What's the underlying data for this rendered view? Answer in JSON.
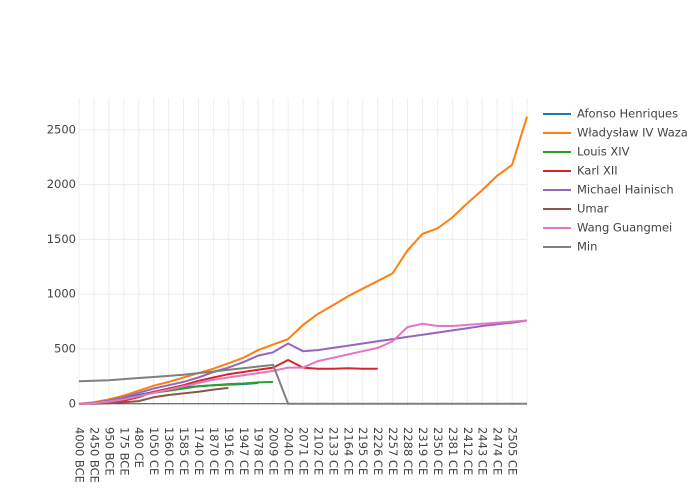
{
  "chart_data": {
    "type": "line",
    "categories": [
      "4000 BCE",
      "2450 BCE",
      "950 BCE",
      "175 BCE",
      "480 CE",
      "1050 CE",
      "1360 CE",
      "1585 CE",
      "1740 CE",
      "1870 CE",
      "1916 CE",
      "1947 CE",
      "1978 CE",
      "2009 CE",
      "2040 CE",
      "2071 CE",
      "2102 CE",
      "2133 CE",
      "2164 CE",
      "2195 CE",
      "2226 CE",
      "2257 CE",
      "2288 CE",
      "2319 CE",
      "2350 CE",
      "2381 CE",
      "2412 CE",
      "2443 CE",
      "2474 CE",
      "2505 CE",
      null
    ],
    "series": [
      {
        "name": "Afonso Henriques",
        "color": "#1f77b4",
        "values": [
          0,
          10,
          25,
          50,
          80,
          110,
          130,
          150,
          160,
          170,
          175,
          180,
          190,
          null,
          null,
          null,
          null,
          null,
          null,
          null,
          null,
          null,
          null,
          null,
          null,
          null,
          null,
          null,
          null,
          null,
          null
        ]
      },
      {
        "name": "Władysław IV Waza",
        "color": "#ff7f0e",
        "values": [
          0,
          15,
          40,
          75,
          120,
          165,
          200,
          240,
          280,
          320,
          370,
          420,
          490,
          540,
          590,
          720,
          820,
          900,
          980,
          1050,
          1120,
          1190,
          1400,
          1550,
          1600,
          1700,
          1830,
          1950,
          2080,
          2180,
          2620
        ]
      },
      {
        "name": "Louis XIV",
        "color": "#2ca02c",
        "values": [
          0,
          5,
          20,
          40,
          70,
          100,
          120,
          140,
          160,
          170,
          180,
          185,
          195,
          200,
          null,
          null,
          null,
          null,
          null,
          null,
          null,
          null,
          null,
          null,
          null,
          null,
          null,
          null,
          null,
          null,
          null
        ]
      },
      {
        "name": "Karl XII",
        "color": "#d62728",
        "values": [
          0,
          5,
          15,
          30,
          60,
          110,
          140,
          170,
          210,
          240,
          270,
          290,
          310,
          330,
          400,
          330,
          320,
          320,
          325,
          320,
          320,
          null,
          null,
          null,
          null,
          null,
          null,
          null,
          null,
          null,
          null
        ]
      },
      {
        "name": "Michael Hainisch",
        "color": "#9467bd",
        "values": [
          0,
          10,
          30,
          60,
          100,
          140,
          170,
          200,
          240,
          290,
          330,
          380,
          440,
          470,
          550,
          480,
          490,
          510,
          530,
          550,
          570,
          590,
          610,
          630,
          650,
          670,
          690,
          710,
          725,
          740,
          760
        ]
      },
      {
        "name": "Umar",
        "color": "#8c564b",
        "values": [
          0,
          0,
          5,
          15,
          25,
          60,
          80,
          95,
          110,
          130,
          145,
          null,
          null,
          null,
          null,
          null,
          null,
          null,
          null,
          null,
          null,
          null,
          null,
          null,
          null,
          null,
          null,
          null,
          null,
          null,
          null
        ]
      },
      {
        "name": "Wang Guangmei",
        "color": "#e377c2",
        "values": [
          0,
          5,
          20,
          40,
          70,
          100,
          130,
          160,
          190,
          220,
          240,
          260,
          280,
          300,
          330,
          330,
          390,
          420,
          450,
          480,
          510,
          570,
          700,
          730,
          710,
          710,
          720,
          730,
          740,
          750,
          760
        ]
      },
      {
        "name": "Min",
        "color": "#7f7f7f",
        "values": [
          205,
          210,
          215,
          225,
          235,
          245,
          255,
          265,
          280,
          295,
          310,
          325,
          340,
          355,
          0,
          0,
          0,
          0,
          0,
          0,
          0,
          0,
          0,
          0,
          0,
          0,
          0,
          0,
          0,
          0,
          0
        ]
      }
    ],
    "ylim": [
      -20,
      2790
    ],
    "yticks": [
      0,
      500,
      1000,
      1500,
      2000,
      2500
    ],
    "grid": true,
    "legend": "right"
  }
}
